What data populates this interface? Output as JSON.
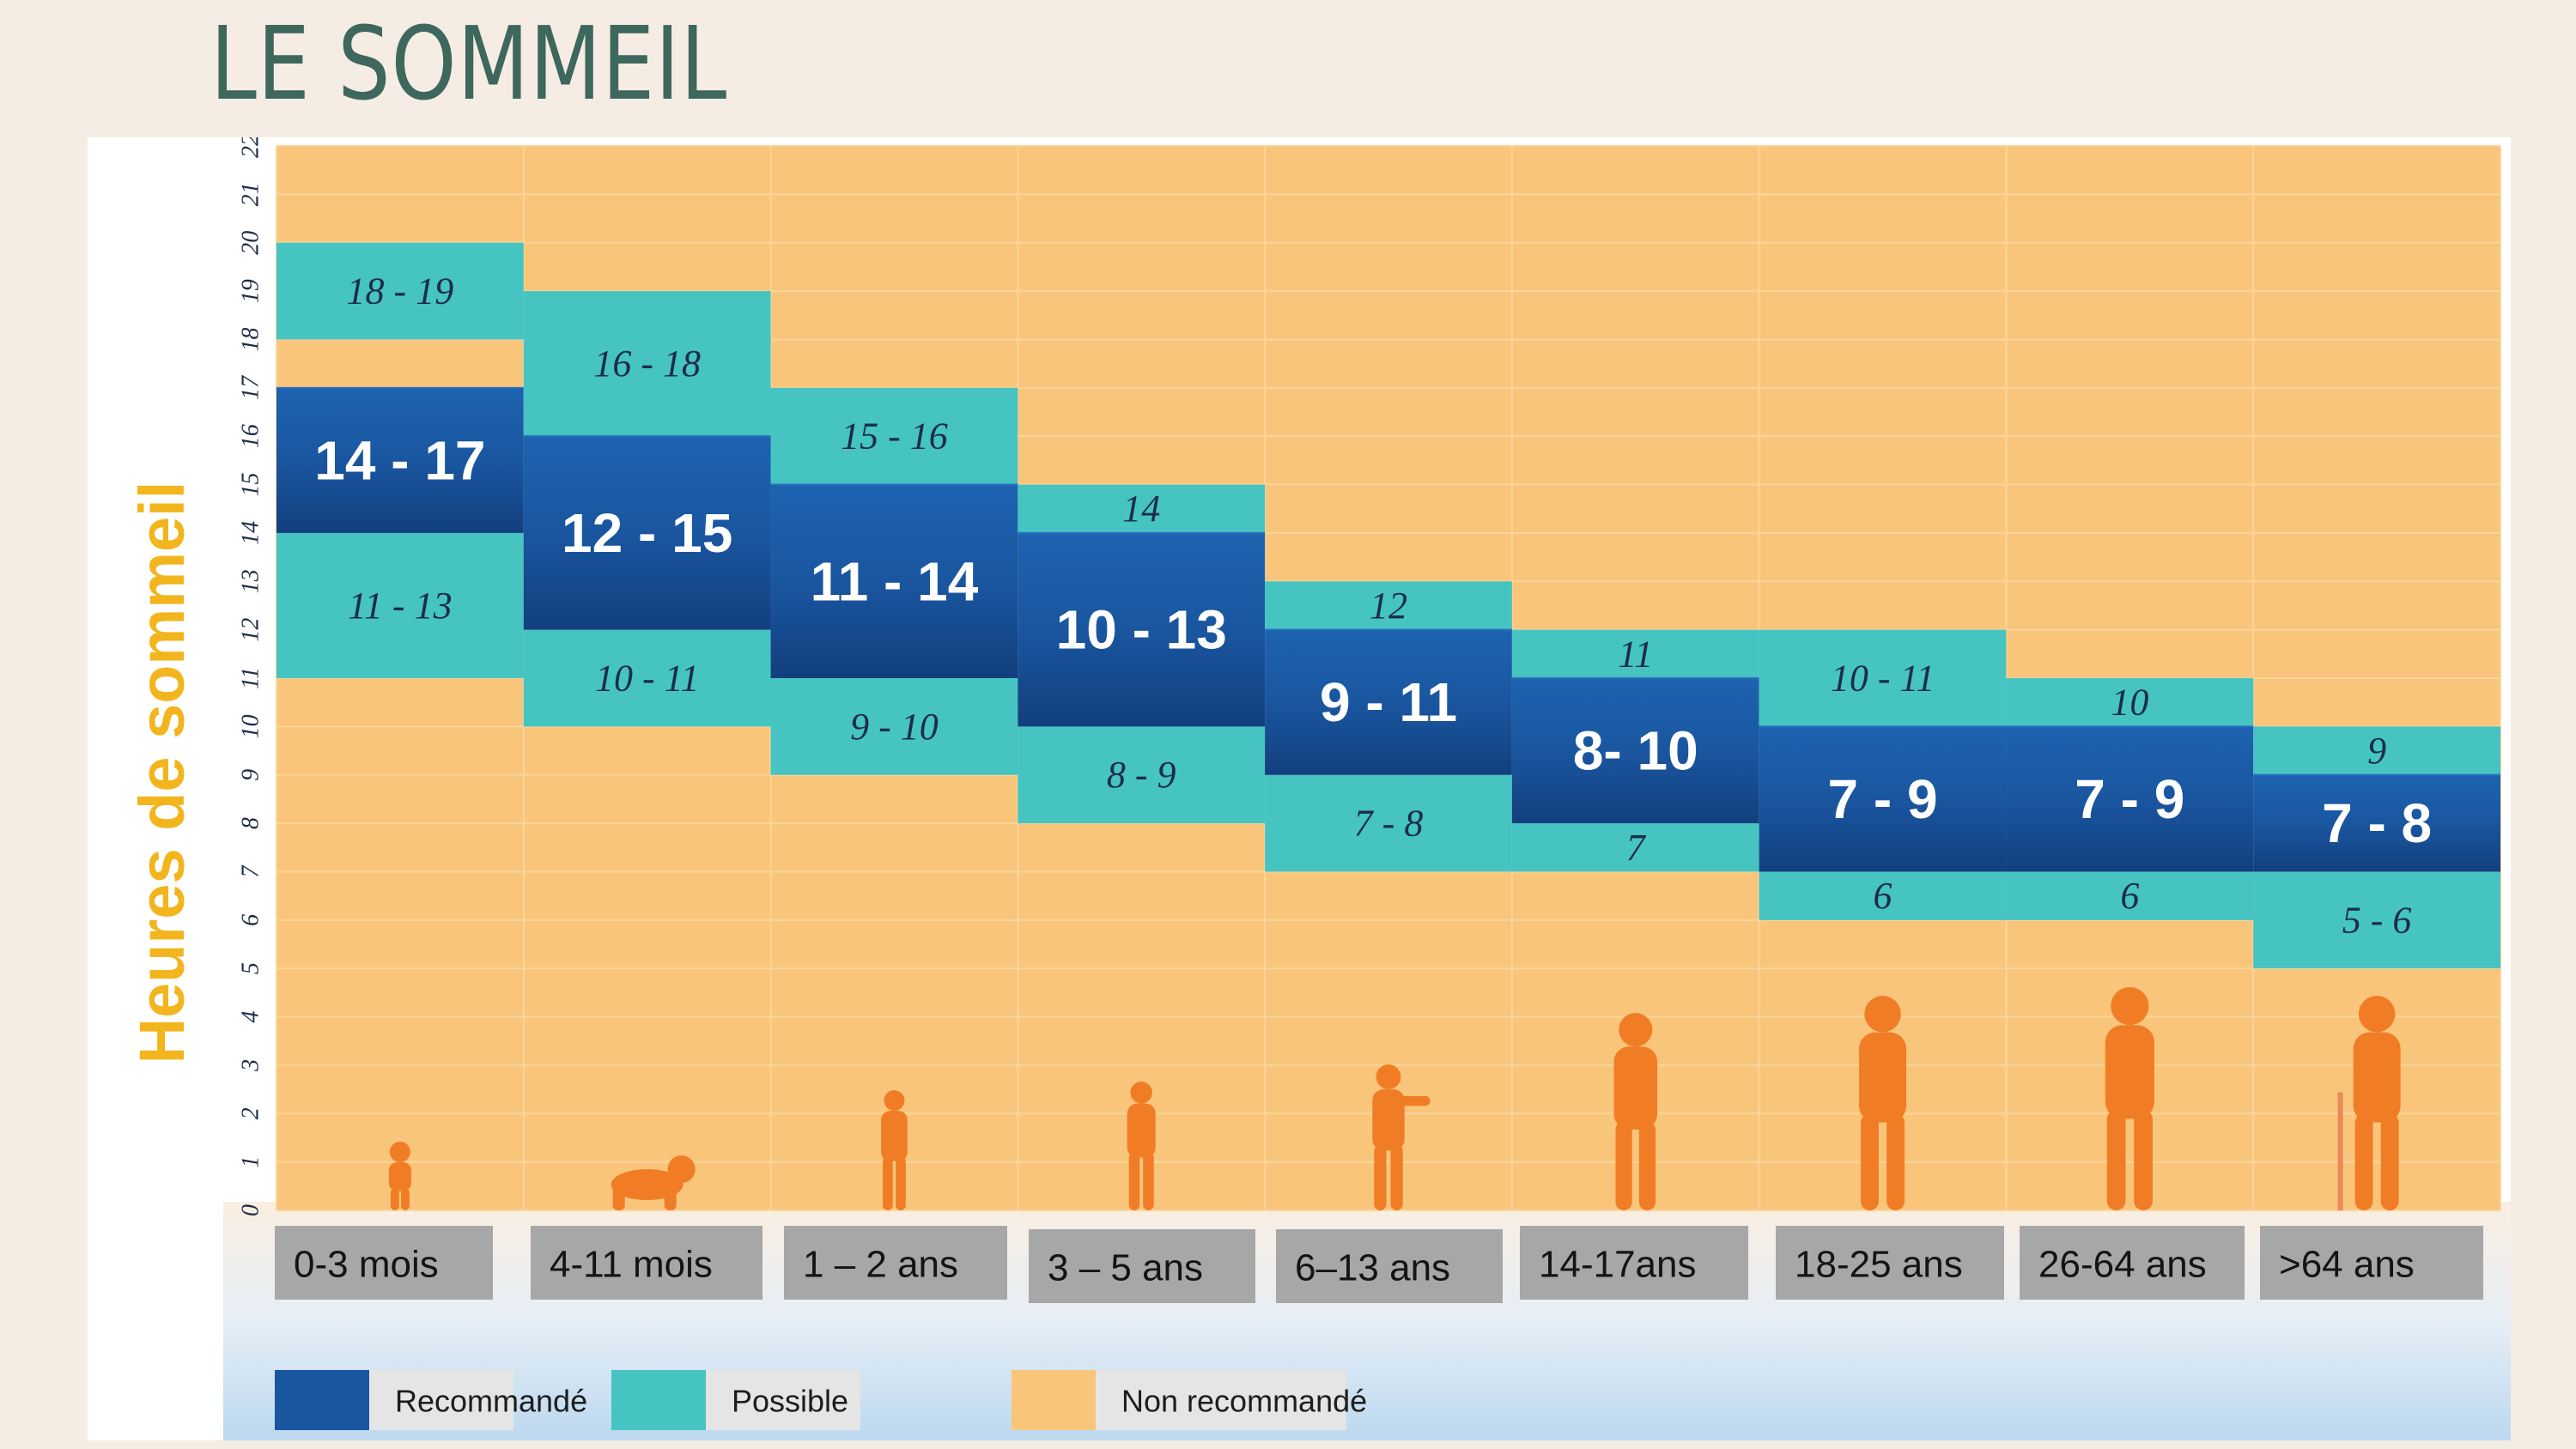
{
  "page": {
    "title": "LE SOMMEIL"
  },
  "chart_data": {
    "type": "bar",
    "title": "",
    "ylabel": "Heures de sommeil",
    "xlabel": "",
    "ylim": [
      0,
      22
    ],
    "y_ticks": [
      "0",
      "1",
      "2",
      "3",
      "4",
      "5",
      "6",
      "7",
      "8",
      "9",
      "10",
      "11",
      "12",
      "13",
      "14",
      "15",
      "16",
      "17",
      "18",
      "19",
      "20",
      "21",
      "22"
    ],
    "categories": [
      "0-3 mois",
      "4-11 mois",
      "1 – 2 ans",
      "3 – 5 ans",
      "6–13 ans",
      "14-17ans",
      "18-25 ans",
      "26-64 ans",
      ">64  ans"
    ],
    "figure_icons": [
      "baby-figure-icon",
      "crawling-baby-figure-icon",
      "toddler-figure-icon",
      "child-figure-icon",
      "schoolchild-figure-icon",
      "teen-figure-icon",
      "young-adult-figure-icon",
      "adult-figure-icon",
      "senior-with-cane-figure-icon"
    ],
    "groups": [
      {
        "recommended": [
          14,
          17
        ],
        "rec_label": "14 - 17",
        "possible_high": [
          18,
          20
        ],
        "high_label": "18 - 19",
        "possible_low": [
          11,
          14
        ],
        "low_label": "11 - 13"
      },
      {
        "recommended": [
          12,
          16
        ],
        "rec_label": "12 - 15",
        "possible_high": [
          16,
          19
        ],
        "high_label": "16 - 18",
        "possible_low": [
          10,
          12
        ],
        "low_label": "10 - 11"
      },
      {
        "recommended": [
          11,
          15
        ],
        "rec_label": "11 - 14",
        "possible_high": [
          15,
          17
        ],
        "high_label": "15 - 16",
        "possible_low": [
          9,
          11
        ],
        "low_label": "9 - 10"
      },
      {
        "recommended": [
          10,
          14
        ],
        "rec_label": "10 - 13",
        "possible_high": [
          14,
          15
        ],
        "high_label": "14",
        "possible_low": [
          8,
          10
        ],
        "low_label": "8 - 9"
      },
      {
        "recommended": [
          9,
          12
        ],
        "rec_label": "9 - 11",
        "possible_high": [
          12,
          13
        ],
        "high_label": "12",
        "possible_low": [
          7,
          9
        ],
        "low_label": "7 - 8"
      },
      {
        "recommended": [
          8,
          11
        ],
        "rec_label": "8- 10",
        "possible_high": [
          11,
          12
        ],
        "high_label": "11",
        "possible_low": [
          7,
          8
        ],
        "low_label": "7"
      },
      {
        "recommended": [
          7,
          10
        ],
        "rec_label": "7 - 9",
        "possible_high": [
          10,
          12
        ],
        "high_label": "10 - 11",
        "possible_low": [
          6,
          7
        ],
        "low_label": "6"
      },
      {
        "recommended": [
          7,
          10
        ],
        "rec_label": "7 - 9",
        "possible_high": [
          10,
          11
        ],
        "high_label": "10",
        "possible_low": [
          6,
          7
        ],
        "low_label": "6"
      },
      {
        "recommended": [
          7,
          9
        ],
        "rec_label": "7 - 8",
        "possible_high": [
          9,
          10
        ],
        "high_label": "9",
        "possible_low": [
          5,
          7
        ],
        "low_label": "5 - 6"
      }
    ],
    "legend": [
      {
        "label": "Recommandé",
        "color": "#1a56a0"
      },
      {
        "label": "Possible",
        "color": "#45c4c2"
      },
      {
        "label": "Non recommandé",
        "color": "#f9c57a"
      }
    ],
    "legend_position": "bottom-left",
    "colors": {
      "background": "#f9c57a",
      "recommended": "#1a56a0",
      "possible": "#45c4c2",
      "figures": "#f07d26",
      "ylabel": "#f3b51d",
      "category_box": "#a7a7a7"
    },
    "grid": true
  }
}
